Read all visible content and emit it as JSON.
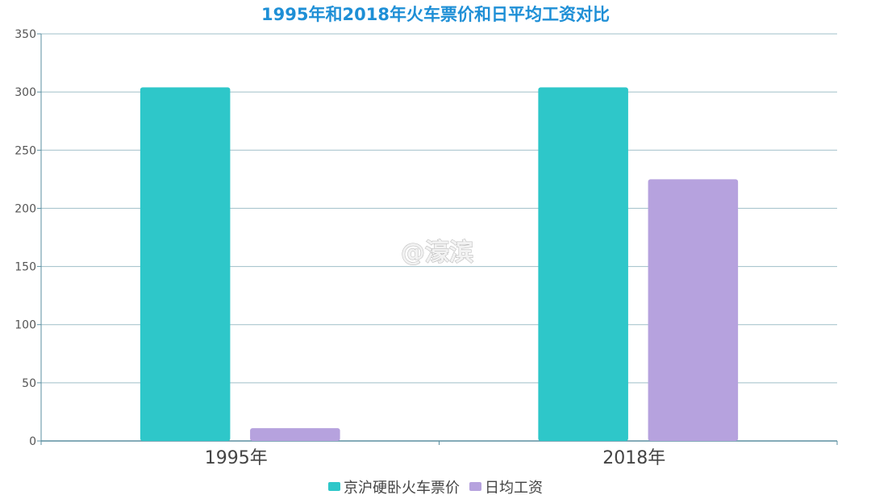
{
  "chart_data": {
    "type": "bar",
    "title": "1995年和2018年火车票价和日平均工资对比",
    "categories": [
      "1995年",
      "2018年"
    ],
    "series": [
      {
        "name": "京沪硬卧火车票价",
        "values": [
          304,
          304
        ],
        "color": "#2ec7c9"
      },
      {
        "name": "日均工资",
        "values": [
          11,
          225
        ],
        "color": "#b6a2de"
      }
    ],
    "ylim": [
      0,
      350
    ],
    "yticks": [
      0,
      50,
      100,
      150,
      200,
      250,
      300,
      350
    ],
    "grid": true,
    "legend_position": "bottom-center",
    "title_color": "#1e8fd6",
    "axis_color": "#5b8fa0"
  },
  "watermark": "@濠滨"
}
